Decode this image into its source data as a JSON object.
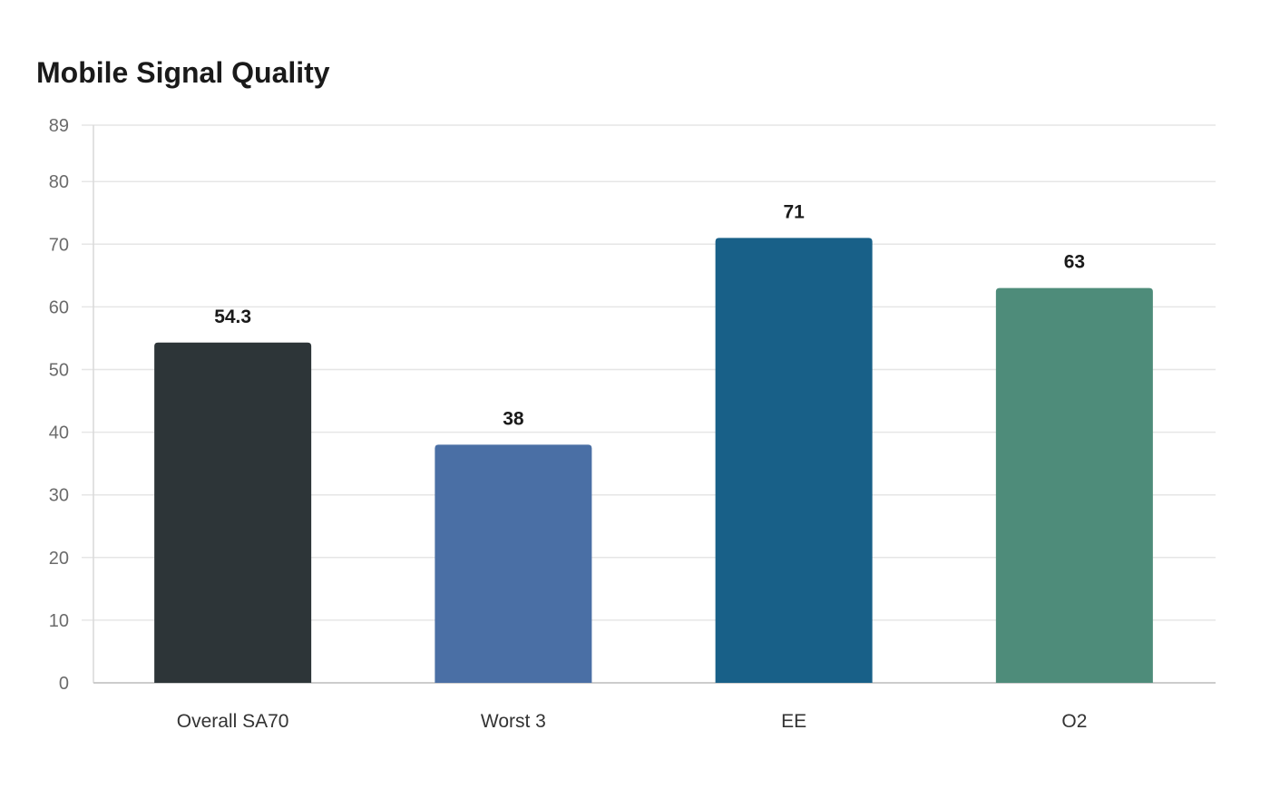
{
  "chart_data": {
    "type": "bar",
    "title": "Mobile Signal Quality",
    "categories": [
      "Overall SA70",
      "Worst 3",
      "EE",
      "O2"
    ],
    "values": [
      54.3,
      38,
      71,
      63
    ],
    "value_labels": [
      "54.3",
      "38",
      "71",
      "63"
    ],
    "colors": [
      "#2d3538",
      "#4a6fa5",
      "#186088",
      "#4e8c7a"
    ],
    "ylim": [
      0,
      89
    ],
    "yticks": [
      0,
      10,
      20,
      30,
      40,
      50,
      60,
      70,
      80,
      89
    ],
    "xlabel": "",
    "ylabel": "",
    "grid": true,
    "legend": "none"
  }
}
